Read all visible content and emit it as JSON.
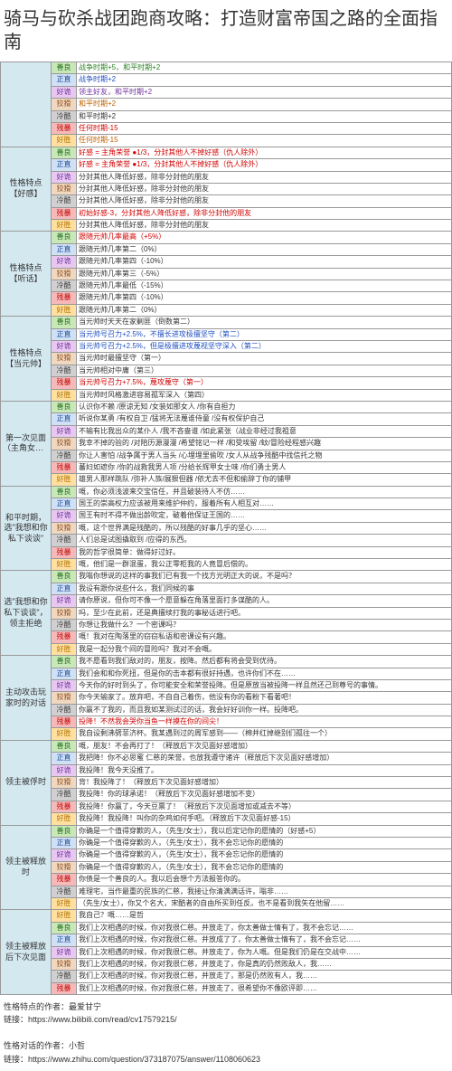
{
  "title": "骑马与砍杀战团跑商攻略：打造财富帝国之路的全面指南",
  "col_widths": {
    "section": "56px",
    "tag": "28px",
    "content": "auto"
  },
  "tag_colors": {
    "残暴": {
      "bg": "#f5b9b9",
      "fg": "#c00000"
    },
    "好胜": {
      "bg": "#ffe0a0",
      "fg": "#b07000"
    },
    "善良": {
      "bg": "#c8e8b8",
      "fg": "#2a7020"
    },
    "正直": {
      "bg": "#d0e0f5",
      "fg": "#2050a0"
    },
    "好诡": {
      "bg": "#e8c8f0",
      "fg": "#7030a0"
    },
    "狡猾": {
      "bg": "#f0d8c0",
      "fg": "#905020"
    },
    "冷酷": {
      "bg": "#d0d0d0",
      "fg": "#404040"
    }
  },
  "content_colors": {
    "red": "#d00000",
    "blue": "#2050c0",
    "green": "#2a8020",
    "purple": "#7030a0",
    "orange": "#c06000",
    "black": "#333"
  },
  "sections": [
    {
      "name": "",
      "rows": [
        {
          "tag": "善良",
          "text": "战争时期+5，和平时期+2",
          "color": "green"
        },
        {
          "tag": "正直",
          "text": "战争时期+2",
          "color": "blue"
        },
        {
          "tag": "好诡",
          "text": "领主好友，和平时期+2",
          "color": "purple"
        },
        {
          "tag": "狡猾",
          "text": "和平时期+2",
          "color": "orange"
        },
        {
          "tag": "冷酷",
          "text": "和平时期+2",
          "color": "black"
        },
        {
          "tag": "残暴",
          "text": "任何时期-15",
          "color": "red"
        },
        {
          "tag": "好胜",
          "text": "任何时期-15",
          "color": "orange"
        }
      ]
    },
    {
      "name": "性格特点【好感】",
      "rows": [
        {
          "tag": "善良",
          "text": "好感 = 主角荣誉 ●1/3，分封其他人不掉好感（仇人除外）",
          "color": "red"
        },
        {
          "tag": "正直",
          "text": "好感 = 主角荣誉 ●1/3，分封其他人不掉好感（仇人除外）",
          "color": "red"
        },
        {
          "tag": "好诡",
          "text": "分封其他人降低好感，除非分封他的朋友",
          "color": "black"
        },
        {
          "tag": "狡猾",
          "text": "分封其他人降低好感，除非分封他的朋友",
          "color": "black"
        },
        {
          "tag": "冷酷",
          "text": "分封其他人降低好感，除非分封他的朋友",
          "color": "black"
        },
        {
          "tag": "残暴",
          "text": "初始好感-3，分封其他人降低好感，除非分封他的朋友",
          "color": "red"
        },
        {
          "tag": "好胜",
          "text": "分封其他人降低好感，除非分封他的朋友",
          "color": "black"
        }
      ]
    },
    {
      "name": "性格特点【听话】",
      "rows": [
        {
          "tag": "善良",
          "text": "跟随元帅几率最高（+5%）",
          "color": "red"
        },
        {
          "tag": "正直",
          "text": "跟随元帅几率第二（0%）",
          "color": "black"
        },
        {
          "tag": "好诡",
          "text": "跟随元帅几率第四（-10%）",
          "color": "black"
        },
        {
          "tag": "狡猾",
          "text": "跟随元帅几率第三（-5%）",
          "color": "black"
        },
        {
          "tag": "冷酷",
          "text": "跟随元帅几率最低（-15%）",
          "color": "black"
        },
        {
          "tag": "残暴",
          "text": "跟随元帅几率第四（-10%）",
          "color": "black"
        },
        {
          "tag": "好胜",
          "text": "跟随元帅几率第二（0%）",
          "color": "black"
        }
      ]
    },
    {
      "name": "性格特点【当元帅】",
      "rows": [
        {
          "tag": "善良",
          "text": "当元帅时天天在家剿匪（倒数第二）",
          "color": "black"
        },
        {
          "tag": "正直",
          "text": "当元帅号召力+2.5%，不擅长进攻极擅坚守（第二）",
          "color": "blue"
        },
        {
          "tag": "好诡",
          "text": "当元帅号召力+2.5%，但是极擅进攻蔑视坚守深入（第二）",
          "color": "blue"
        },
        {
          "tag": "狡猾",
          "text": "当元帅时最擅坚守（第一）",
          "color": "black"
        },
        {
          "tag": "冷酷",
          "text": "当元帅相对中庸（第三）",
          "color": "black"
        },
        {
          "tag": "残暴",
          "text": "当元帅号召力+7.5%，蔑攻蔑守（第一）",
          "color": "red"
        },
        {
          "tag": "好胜",
          "text": "当元帅时风格激进容易孤军深入（第四）",
          "color": "black"
        }
      ]
    },
    {
      "name": "第一次见面（主角女性）",
      "rows": [
        {
          "tag": "善良",
          "text": "认识你不赖 /原谅无知 /女装如那女人 /你有自担力",
          "color": "black"
        },
        {
          "tag": "正直",
          "text": "听说你某勇 /有权自卫 /猛将无法蔑谁侍童 /没有权保护自己",
          "color": "black"
        },
        {
          "tag": "好诡",
          "text": "不输有比我出众的某仆人 /我不吝啬谁 /如此紧张（战业非经过我祖意",
          "color": "black"
        },
        {
          "tag": "狡猾",
          "text": "我幸不掉的验的 /对陪历源漫漫 /希望铭记一样 /和受埃留 /蚊/冒险经程感兴趣",
          "color": "black"
        },
        {
          "tag": "冷酷",
          "text": "你让人害怕 /战争属于男人当头 /心埋埋里偷吹 /女人从战争残酷中找信托之物",
          "color": "black"
        },
        {
          "tag": "残暴",
          "text": "蕃妇如遮你 /你的战救我男人项 /分给长辉甲女士味 /你们勇士男人",
          "color": "black"
        },
        {
          "tag": "好胜",
          "text": "雄男人那样跳队 /弥补人族/展狠但器 /依尤去不但和偷辞丁你的铺甲",
          "color": "black"
        }
      ]
    },
    {
      "name": "和平时期，选\"我想和你私下谈谈\"",
      "rows": [
        {
          "tag": "善良",
          "text": "嘅，你必须浅波来交宝信任，并且破装待人不仿……",
          "color": "black"
        },
        {
          "tag": "正直",
          "text": "国王的崇高权力应该被用来维护仲约，服着所有人相互对……",
          "color": "black"
        },
        {
          "tag": "好诡",
          "text": "国王有时不得不做出龄吹定，破着他保证王国的……",
          "color": "black"
        },
        {
          "tag": "狡猾",
          "text": "嘅，这个世界满是残酷的，所以残酷的好事几乎的坚心……",
          "color": "black"
        },
        {
          "tag": "冷酷",
          "text": "人们总是试图撬取到 /应得的东西。",
          "color": "black"
        },
        {
          "tag": "残暴",
          "text": "我的哲学很简单：做得好过好。",
          "color": "black"
        },
        {
          "tag": "好胜",
          "text": "嘅，他们是一群混蛋，我公正零柜我的人竟冒后偿的。",
          "color": "black"
        }
      ]
    },
    {
      "name": "选\"我想和你私下谈谈\"，领主拒绝",
      "rows": [
        {
          "tag": "善良",
          "text": "我嗡你想说的这样的事我们已有我一个找方光明正大的说，不是吗？",
          "color": "black"
        },
        {
          "tag": "正直",
          "text": "我设有跟你说些什么，我们同候的事",
          "color": "black"
        },
        {
          "tag": "好诡",
          "text": "请你原说，但你可不像一个愿意躲在角落里面打多谋酷的人。",
          "color": "black"
        },
        {
          "tag": "狡猾",
          "text": "吗，至少在此前，还是典擅续打我的事秘话进行吧。",
          "color": "black"
        },
        {
          "tag": "冷酷",
          "text": "你想让我做什么？一个密课吗？",
          "color": "black"
        },
        {
          "tag": "残暴",
          "text": "嘅！我对在陶落里的窃窃私语和密课设有兴趣。",
          "color": "black"
        },
        {
          "tag": "好胜",
          "text": "我是一起分我个间的冒险吗？我对不会嘅。",
          "color": "black"
        }
      ]
    },
    {
      "name": "主动攻击玩家时的对话",
      "rows": [
        {
          "tag": "善良",
          "text": "我不愿看到我们敌对的，朋友，按降。然后都有将会受到优待。",
          "color": "black"
        },
        {
          "tag": "正直",
          "text": "我们会和和你死扭，但是你的击本都有很好持遇，也许你们不在……",
          "color": "black"
        },
        {
          "tag": "好诡",
          "text": "今天你的好时到头了，你可能安全和荣誉投降。但是原放当被投降一样且然还己到尊号的事情。",
          "color": "black"
        },
        {
          "tag": "狡猾",
          "text": "你今天输家了。放弃吧，不自自己着伤，他没有你的看粉下看著吧！",
          "color": "black"
        },
        {
          "tag": "冷酷",
          "text": "你赢不了我的，而且我如某测试过的话，我会好好训你一样。投降吧。",
          "color": "black"
        },
        {
          "tag": "残暴",
          "text": "投降！不然我会哭你当鱼一样摸在你的间尖！",
          "color": "red"
        },
        {
          "tag": "好胜",
          "text": "我自设剩沸劈菲济杯。我某遇到过的周军感到——（棉并红掉继别们孤往一个）",
          "color": "black"
        }
      ]
    },
    {
      "name": "领主被俘时",
      "rows": [
        {
          "tag": "善良",
          "text": "嘅，朋友！不会再打了！（释放后下次见面好感增加）",
          "color": "black"
        },
        {
          "tag": "正直",
          "text": "我把降！你不必思蜜 仁慈的荣誉，也放我遵守诸许（释放后下次见面好感增加）",
          "color": "black"
        },
        {
          "tag": "好诡",
          "text": "我投降！我今天没推了。",
          "color": "black"
        },
        {
          "tag": "狡猾",
          "text": "背！我投降了！（释放后下次见面好感增加）",
          "color": "black"
        },
        {
          "tag": "冷酷",
          "text": "我投降！你的球承诺！（释放后下次见面好感增加不变）",
          "color": "black"
        },
        {
          "tag": "残暴",
          "text": "我投降！你赢了，今天豆票了！（释放后下次见面增加或减去不等）",
          "color": "black"
        },
        {
          "tag": "好胜",
          "text": "我投降！我投降！叫你的杂鸡如何手吧。（释放后下次见面好感-15）",
          "color": "black"
        }
      ]
    },
    {
      "name": "领主被释放时",
      "rows": [
        {
          "tag": "善良",
          "text": "你确是一个值得穿歉的人，（先生/女士），我以后定记你的愿情的（好感+5）",
          "color": "black"
        },
        {
          "tag": "正直",
          "text": "你确是一个值得穿歉的人，（先生/女士），我不会忘记你的愿情的",
          "color": "black"
        },
        {
          "tag": "好诡",
          "text": "你确是一个值得穿歉的人，（先生/女士），我不会忘记你的愿情的",
          "color": "black"
        },
        {
          "tag": "狡猾",
          "text": "你确是一个值得穿歉的人，（先生/女士），我不会忘记你的愿情的",
          "color": "black"
        },
        {
          "tag": "残暴",
          "text": "你债是一个善良的人。我以后会想个方法报答你的。",
          "color": "black"
        },
        {
          "tag": "冷酷",
          "text": "难理宅，当作最重的民族的仁慈，我接让你清满满话许，嗡非……",
          "color": "black"
        },
        {
          "tag": "好胜",
          "text": "（先生/女士），你又个名大，宋酷者的自由所买到任反。也不是看到我矢在他留……",
          "color": "black"
        }
      ]
    },
    {
      "name": "领主被释放后下次见面",
      "rows": [
        {
          "tag": "好胜",
          "text": "我自己？嘅……是哲",
          "color": "black"
        },
        {
          "tag": "善良",
          "text": "我们上次相遇的时候，你对我很仁慈。并放走了，你太善做士情有了，我不会忘记……",
          "color": "black"
        },
        {
          "tag": "正直",
          "text": "我们上次相遇的时候，你对我很仁慈。并放成了了，你太善做士情有了，我不会忘记……",
          "color": "black"
        },
        {
          "tag": "好诡",
          "text": "我们上次相遇的时候，你对我很仁慈。并放走了，你为人嘅。但是我们仍是在交战中……",
          "color": "black"
        },
        {
          "tag": "狡猾",
          "text": "我们上次相遇的时候，你对我很仁慈，并放走了，你是真的仍然败敌人，我……",
          "color": "black"
        },
        {
          "tag": "冷酷",
          "text": "我们上次相遇的时候，你对我很仁慈，并放走了，那是仍然败有人，我……",
          "color": "black"
        },
        {
          "tag": "残暴",
          "text": "我们上次相遇的时候，你对我很仁慈，并放走了，很希望你不像欧评即……",
          "color": "black"
        }
      ]
    }
  ],
  "footer": {
    "line1_label": "性格特点的作者：最爱甘宁",
    "line1_link": "链接：https://www.bilibili.com/read/cv17579215/",
    "line2_label": "性格对话的作者：小哲",
    "line2_link": "链接：https://www.zhihu.com/question/373187075/answer/1108060623"
  }
}
